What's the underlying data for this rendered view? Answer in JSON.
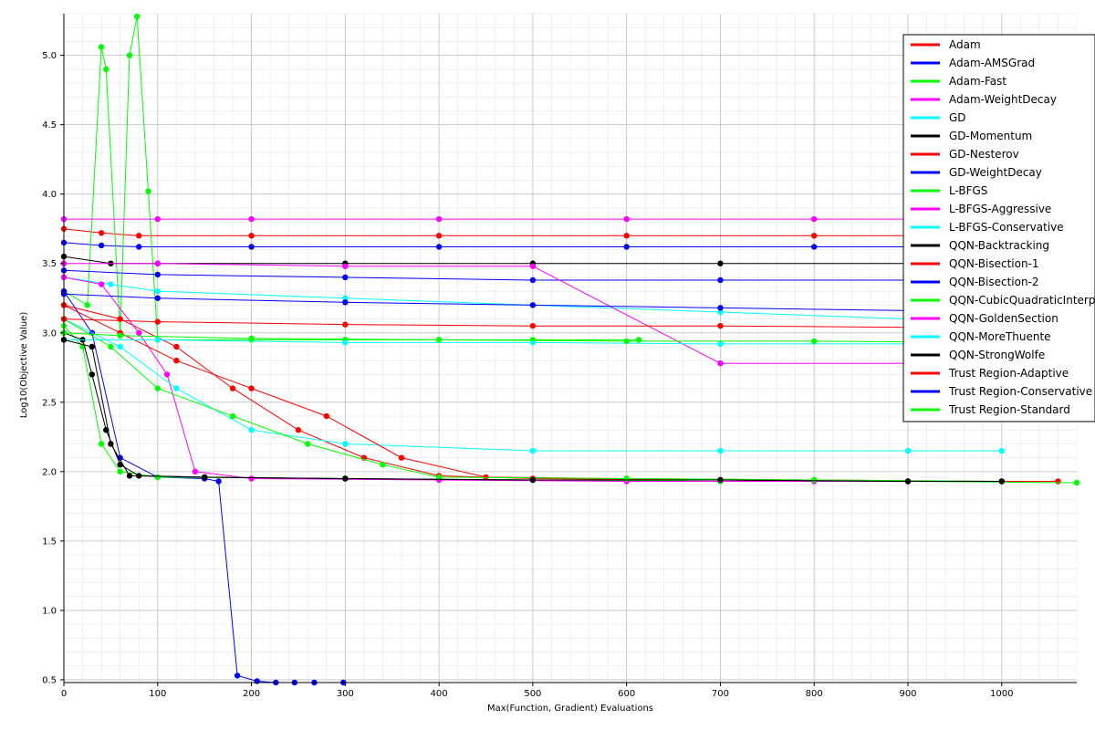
{
  "chart_data": {
    "type": "line",
    "title": "",
    "xlabel": "Max(Function, Gradient) Evaluations",
    "ylabel": "Log10(Objective Value)",
    "xlim": [
      0,
      1080
    ],
    "ylim": [
      0.48,
      5.3
    ],
    "x_ticks": [
      0,
      100,
      200,
      300,
      400,
      500,
      600,
      700,
      800,
      900,
      1000
    ],
    "y_ticks": [
      0.5,
      1.0,
      1.5,
      2.0,
      2.5,
      3.0,
      3.5,
      4.0,
      4.5,
      5.0
    ],
    "grid": true,
    "minor_grid": true,
    "legend_position": "top-right",
    "series": [
      {
        "name": "Adam",
        "color": "#ff0000",
        "points": [
          [
            0,
            3.75
          ],
          [
            40,
            3.72
          ],
          [
            80,
            3.7
          ],
          [
            200,
            3.7
          ],
          [
            400,
            3.7
          ],
          [
            600,
            3.7
          ],
          [
            800,
            3.7
          ],
          [
            1000,
            3.7
          ]
        ]
      },
      {
        "name": "Adam-AMSGrad",
        "color": "#0000ff",
        "points": [
          [
            0,
            3.65
          ],
          [
            40,
            3.63
          ],
          [
            80,
            3.62
          ],
          [
            200,
            3.62
          ],
          [
            400,
            3.62
          ],
          [
            600,
            3.62
          ],
          [
            800,
            3.62
          ],
          [
            1000,
            3.62
          ]
        ]
      },
      {
        "name": "Adam-Fast",
        "color": "#00ff00",
        "points": [
          [
            0,
            3.3
          ],
          [
            25,
            3.2
          ],
          [
            40,
            5.06
          ],
          [
            45,
            4.9
          ],
          [
            60,
            3.0
          ],
          [
            70,
            5.0
          ],
          [
            78,
            5.28
          ],
          [
            90,
            4.02
          ],
          [
            100,
            2.95
          ],
          [
            200,
            2.95
          ],
          [
            300,
            2.95
          ],
          [
            400,
            2.95
          ],
          [
            500,
            2.95
          ],
          [
            613,
            2.95
          ]
        ]
      },
      {
        "name": "Adam-WeightDecay",
        "color": "#ff00ff",
        "points": [
          [
            0,
            3.82
          ],
          [
            100,
            3.82
          ],
          [
            200,
            3.82
          ],
          [
            400,
            3.82
          ],
          [
            600,
            3.82
          ],
          [
            800,
            3.82
          ],
          [
            1000,
            3.82
          ]
        ]
      },
      {
        "name": "GD",
        "color": "#00ffff",
        "points": [
          [
            0,
            3.4
          ],
          [
            50,
            3.35
          ],
          [
            100,
            3.3
          ],
          [
            300,
            3.25
          ],
          [
            500,
            3.2
          ],
          [
            700,
            3.15
          ],
          [
            900,
            3.1
          ],
          [
            1000,
            3.1
          ]
        ]
      },
      {
        "name": "GD-Momentum",
        "color": "#000000",
        "points": [
          [
            0,
            3.55
          ],
          [
            50,
            3.5
          ],
          [
            100,
            3.5
          ],
          [
            300,
            3.5
          ],
          [
            500,
            3.5
          ],
          [
            700,
            3.5
          ],
          [
            900,
            3.5
          ],
          [
            1000,
            3.5
          ]
        ]
      },
      {
        "name": "GD-Nesterov",
        "color": "#ff0000",
        "points": [
          [
            0,
            3.2
          ],
          [
            60,
            3.1
          ],
          [
            120,
            2.9
          ],
          [
            180,
            2.6
          ],
          [
            250,
            2.3
          ],
          [
            320,
            2.1
          ],
          [
            400,
            1.97
          ],
          [
            500,
            1.95
          ],
          [
            700,
            1.94
          ],
          [
            900,
            1.93
          ],
          [
            1060,
            1.93
          ]
        ]
      },
      {
        "name": "GD-WeightDecay",
        "color": "#0000ff",
        "points": [
          [
            0,
            3.3
          ],
          [
            30,
            3.0
          ],
          [
            60,
            2.1
          ],
          [
            100,
            1.96
          ],
          [
            150,
            1.95
          ],
          [
            165,
            1.93
          ],
          [
            185,
            0.53
          ],
          [
            206,
            0.49
          ],
          [
            226,
            0.48
          ],
          [
            246,
            0.48
          ],
          [
            267,
            0.48
          ],
          [
            298,
            0.48
          ]
        ]
      },
      {
        "name": "L-BFGS",
        "color": "#00ff00",
        "points": [
          [
            0,
            3.05
          ],
          [
            20,
            2.9
          ],
          [
            40,
            2.2
          ],
          [
            60,
            2.0
          ],
          [
            100,
            1.96
          ],
          [
            300,
            1.95
          ],
          [
            500,
            1.94
          ],
          [
            700,
            1.93
          ],
          [
            900,
            1.93
          ],
          [
            1080,
            1.92
          ]
        ]
      },
      {
        "name": "L-BFGS-Aggressive",
        "color": "#ff00ff",
        "points": [
          [
            0,
            3.4
          ],
          [
            40,
            3.35
          ],
          [
            80,
            3.0
          ],
          [
            110,
            2.7
          ],
          [
            140,
            2.0
          ],
          [
            200,
            1.95
          ],
          [
            400,
            1.94
          ],
          [
            600,
            1.93
          ],
          [
            800,
            1.93
          ],
          [
            1000,
            1.93
          ]
        ]
      },
      {
        "name": "L-BFGS-Conservative",
        "color": "#00ffff",
        "points": [
          [
            0,
            3.1
          ],
          [
            60,
            2.9
          ],
          [
            120,
            2.6
          ],
          [
            200,
            2.3
          ],
          [
            300,
            2.2
          ],
          [
            500,
            2.15
          ],
          [
            700,
            2.15
          ],
          [
            900,
            2.15
          ],
          [
            1000,
            2.15
          ]
        ]
      },
      {
        "name": "QQN-Backtracking",
        "color": "#000000",
        "points": [
          [
            0,
            3.0
          ],
          [
            20,
            2.95
          ],
          [
            30,
            2.7
          ],
          [
            45,
            2.3
          ],
          [
            60,
            2.05
          ],
          [
            80,
            1.97
          ],
          [
            150,
            1.96
          ],
          [
            300,
            1.95
          ],
          [
            500,
            1.94
          ],
          [
            700,
            1.94
          ],
          [
            900,
            1.93
          ],
          [
            1000,
            1.93
          ]
        ]
      },
      {
        "name": "QQN-Bisection-1",
        "color": "#ff0000",
        "points": [
          [
            0,
            3.2
          ],
          [
            60,
            3.0
          ],
          [
            120,
            2.8
          ],
          [
            200,
            2.6
          ],
          [
            280,
            2.4
          ],
          [
            360,
            2.1
          ],
          [
            450,
            1.96
          ],
          [
            600,
            1.95
          ],
          [
            800,
            1.94
          ],
          [
            1000,
            1.93
          ]
        ]
      },
      {
        "name": "QQN-Bisection-2",
        "color": "#0000ff",
        "points": [
          [
            0,
            3.45
          ],
          [
            100,
            3.42
          ],
          [
            300,
            3.4
          ],
          [
            500,
            3.38
          ],
          [
            700,
            3.38
          ],
          [
            900,
            3.38
          ],
          [
            1000,
            3.38
          ]
        ]
      },
      {
        "name": "QQN-CubicQuadraticInterpolation",
        "color": "#00ff00",
        "points": [
          [
            0,
            3.1
          ],
          [
            50,
            2.9
          ],
          [
            100,
            2.6
          ],
          [
            180,
            2.4
          ],
          [
            260,
            2.2
          ],
          [
            340,
            2.05
          ],
          [
            400,
            1.96
          ],
          [
            600,
            1.95
          ],
          [
            800,
            1.94
          ],
          [
            1000,
            1.93
          ]
        ]
      },
      {
        "name": "QQN-GoldenSection",
        "color": "#ff00ff",
        "points": [
          [
            0,
            3.5
          ],
          [
            100,
            3.5
          ],
          [
            300,
            3.48
          ],
          [
            500,
            3.48
          ],
          [
            700,
            2.78
          ],
          [
            900,
            2.78
          ],
          [
            1000,
            2.78
          ]
        ]
      },
      {
        "name": "QQN-MoreThuente",
        "color": "#00ffff",
        "points": [
          [
            0,
            2.95
          ],
          [
            100,
            2.95
          ],
          [
            300,
            2.93
          ],
          [
            500,
            2.93
          ],
          [
            700,
            2.92
          ],
          [
            900,
            2.92
          ],
          [
            1000,
            2.92
          ]
        ]
      },
      {
        "name": "QQN-StrongWolfe",
        "color": "#000000",
        "points": [
          [
            0,
            2.95
          ],
          [
            30,
            2.9
          ],
          [
            50,
            2.2
          ],
          [
            70,
            1.97
          ],
          [
            150,
            1.96
          ],
          [
            300,
            1.95
          ],
          [
            500,
            1.94
          ],
          [
            700,
            1.94
          ],
          [
            900,
            1.93
          ],
          [
            1000,
            1.93
          ]
        ]
      },
      {
        "name": "Trust Region-Adaptive",
        "color": "#ff0000",
        "points": [
          [
            0,
            3.1
          ],
          [
            100,
            3.08
          ],
          [
            300,
            3.06
          ],
          [
            500,
            3.05
          ],
          [
            700,
            3.05
          ],
          [
            900,
            3.04
          ],
          [
            1000,
            3.04
          ]
        ]
      },
      {
        "name": "Trust Region-Conservative",
        "color": "#0000ff",
        "points": [
          [
            0,
            3.28
          ],
          [
            100,
            3.25
          ],
          [
            300,
            3.22
          ],
          [
            500,
            3.2
          ],
          [
            700,
            3.18
          ],
          [
            900,
            3.16
          ],
          [
            1000,
            3.15
          ]
        ]
      },
      {
        "name": "Trust Region-Standard",
        "color": "#00ff00",
        "points": [
          [
            0,
            3.0
          ],
          [
            60,
            2.98
          ],
          [
            200,
            2.96
          ],
          [
            400,
            2.95
          ],
          [
            600,
            2.94
          ],
          [
            800,
            2.94
          ],
          [
            1000,
            2.93
          ]
        ]
      }
    ]
  }
}
